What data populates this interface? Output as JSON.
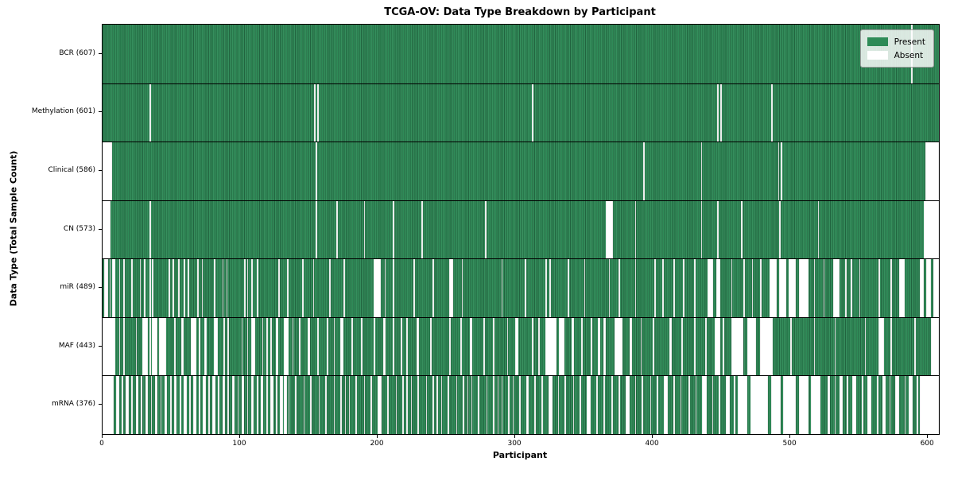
{
  "title": "TCGA-OV: Data Type Breakdown by Participant",
  "x_axis": {
    "label": "Participant"
  },
  "y_axis": {
    "label": "Data Type (Total Sample Count)"
  },
  "legend": [
    {
      "label": "Present",
      "color": "#2e8b57"
    },
    {
      "label": "Absent",
      "color": "#ffffff"
    }
  ],
  "colors": {
    "present": "#2e8b57",
    "present_edge": "#1f6840",
    "absent": "#ffffff",
    "axis": "#000000"
  },
  "chart_data": {
    "type": "heatmap",
    "title": "TCGA-OV: Data Type Breakdown by Participant",
    "xlabel": "Participant",
    "ylabel": "Data Type (Total Sample Count)",
    "x_ticks": [
      0,
      100,
      200,
      300,
      400,
      500,
      600
    ],
    "total_participants": 608,
    "values_meaning": {
      "present": "Present",
      "absent": "Absent"
    },
    "rows": [
      {
        "name": "BCR",
        "label": "BCR (607)",
        "present_count": 607,
        "absent_ranges": [
          [
            588,
            588
          ]
        ]
      },
      {
        "name": "Methylation",
        "label": "Methylation (601)",
        "present_count": 601,
        "absent_ranges": [
          [
            34,
            34
          ],
          [
            154,
            154
          ],
          [
            156,
            156
          ],
          [
            312,
            312
          ],
          [
            447,
            447
          ],
          [
            449,
            449
          ],
          [
            486,
            486
          ]
        ]
      },
      {
        "name": "Clinical",
        "label": "Clinical (586)",
        "present_count": 586,
        "absent_ranges": [
          [
            0,
            6
          ],
          [
            155,
            155
          ],
          [
            393,
            393
          ],
          [
            435,
            435
          ],
          [
            491,
            491
          ],
          [
            493,
            493
          ],
          [
            598,
            607
          ]
        ]
      },
      {
        "name": "CN",
        "label": "CN (573)",
        "present_count": 573,
        "absent_ranges": [
          [
            0,
            5
          ],
          [
            34,
            34
          ],
          [
            155,
            155
          ],
          [
            170,
            170
          ],
          [
            190,
            190
          ],
          [
            211,
            211
          ],
          [
            232,
            232
          ],
          [
            278,
            278
          ],
          [
            366,
            370
          ],
          [
            387,
            387
          ],
          [
            435,
            435
          ],
          [
            447,
            447
          ],
          [
            464,
            464
          ],
          [
            492,
            492
          ],
          [
            520,
            520
          ],
          [
            597,
            607
          ]
        ]
      },
      {
        "name": "miR",
        "label": "miR (489)",
        "present_count": 489,
        "absent_ranges": [
          [
            1,
            3
          ],
          [
            5,
            5
          ],
          [
            7,
            8
          ],
          [
            12,
            12
          ],
          [
            15,
            15
          ],
          [
            21,
            21
          ],
          [
            27,
            27
          ],
          [
            30,
            30
          ],
          [
            34,
            34
          ],
          [
            36,
            36
          ],
          [
            48,
            48
          ],
          [
            51,
            51
          ],
          [
            55,
            55
          ],
          [
            59,
            59
          ],
          [
            62,
            62
          ],
          [
            69,
            69
          ],
          [
            72,
            72
          ],
          [
            81,
            81
          ],
          [
            87,
            87
          ],
          [
            90,
            90
          ],
          [
            103,
            103
          ],
          [
            105,
            105
          ],
          [
            108,
            108
          ],
          [
            112,
            112
          ],
          [
            128,
            128
          ],
          [
            134,
            134
          ],
          [
            145,
            145
          ],
          [
            153,
            153
          ],
          [
            165,
            165
          ],
          [
            175,
            175
          ],
          [
            197,
            201
          ],
          [
            205,
            205
          ],
          [
            211,
            211
          ],
          [
            226,
            226
          ],
          [
            240,
            240
          ],
          [
            252,
            254
          ],
          [
            261,
            261
          ],
          [
            290,
            290
          ],
          [
            307,
            307
          ],
          [
            322,
            322
          ],
          [
            325,
            325
          ],
          [
            338,
            338
          ],
          [
            350,
            350
          ],
          [
            368,
            368
          ],
          [
            375,
            375
          ],
          [
            387,
            387
          ],
          [
            401,
            401
          ],
          [
            407,
            407
          ],
          [
            415,
            415
          ],
          [
            422,
            422
          ],
          [
            430,
            430
          ],
          [
            440,
            443
          ],
          [
            446,
            448
          ],
          [
            457,
            457
          ],
          [
            466,
            466
          ],
          [
            472,
            472
          ],
          [
            478,
            478
          ],
          [
            485,
            489
          ],
          [
            492,
            496
          ],
          [
            499,
            503
          ],
          [
            506,
            512
          ],
          [
            517,
            517
          ],
          [
            524,
            524
          ],
          [
            531,
            535
          ],
          [
            540,
            540
          ],
          [
            544,
            544
          ],
          [
            550,
            550
          ],
          [
            564,
            564
          ],
          [
            573,
            573
          ],
          [
            579,
            582
          ],
          [
            594,
            596
          ],
          [
            599,
            601
          ],
          [
            604,
            607
          ]
        ]
      },
      {
        "name": "MAF",
        "label": "MAF (443)",
        "present_count": 443,
        "absent_ranges": [
          [
            0,
            8
          ],
          [
            12,
            12
          ],
          [
            15,
            15
          ],
          [
            24,
            24
          ],
          [
            29,
            32
          ],
          [
            34,
            34
          ],
          [
            36,
            39
          ],
          [
            41,
            45
          ],
          [
            52,
            52
          ],
          [
            57,
            58
          ],
          [
            64,
            67
          ],
          [
            70,
            70
          ],
          [
            74,
            75
          ],
          [
            81,
            83
          ],
          [
            88,
            88
          ],
          [
            91,
            91
          ],
          [
            101,
            101
          ],
          [
            105,
            105
          ],
          [
            108,
            110
          ],
          [
            116,
            116
          ],
          [
            119,
            119
          ],
          [
            122,
            122
          ],
          [
            126,
            127
          ],
          [
            132,
            134
          ],
          [
            138,
            138
          ],
          [
            143,
            143
          ],
          [
            149,
            150
          ],
          [
            156,
            156
          ],
          [
            163,
            163
          ],
          [
            168,
            168
          ],
          [
            173,
            174
          ],
          [
            181,
            181
          ],
          [
            188,
            188
          ],
          [
            197,
            197
          ],
          [
            204,
            205
          ],
          [
            211,
            211
          ],
          [
            217,
            217
          ],
          [
            221,
            221
          ],
          [
            228,
            229
          ],
          [
            238,
            238
          ],
          [
            252,
            252
          ],
          [
            260,
            260
          ],
          [
            267,
            268
          ],
          [
            277,
            277
          ],
          [
            284,
            284
          ],
          [
            294,
            294
          ],
          [
            300,
            301
          ],
          [
            312,
            312
          ],
          [
            317,
            317
          ],
          [
            322,
            329
          ],
          [
            332,
            335
          ],
          [
            341,
            342
          ],
          [
            348,
            348
          ],
          [
            355,
            355
          ],
          [
            360,
            361
          ],
          [
            364,
            365
          ],
          [
            372,
            377
          ],
          [
            383,
            384
          ],
          [
            391,
            391
          ],
          [
            400,
            400
          ],
          [
            412,
            413
          ],
          [
            421,
            421
          ],
          [
            430,
            430
          ],
          [
            438,
            438
          ],
          [
            445,
            448
          ],
          [
            451,
            451
          ],
          [
            457,
            465
          ],
          [
            469,
            474
          ],
          [
            478,
            486
          ],
          [
            500,
            500
          ],
          [
            517,
            517
          ],
          [
            532,
            532
          ],
          [
            554,
            554
          ],
          [
            564,
            567
          ],
          [
            573,
            573
          ],
          [
            590,
            590
          ],
          [
            602,
            607
          ]
        ]
      },
      {
        "name": "mRNA",
        "label": "mRNA (376)",
        "present_count": 376,
        "absent_ranges": [
          [
            0,
            7
          ],
          [
            10,
            11
          ],
          [
            14,
            14
          ],
          [
            17,
            18
          ],
          [
            21,
            21
          ],
          [
            24,
            25
          ],
          [
            28,
            28
          ],
          [
            31,
            32
          ],
          [
            35,
            35
          ],
          [
            38,
            39
          ],
          [
            42,
            42
          ],
          [
            45,
            46
          ],
          [
            49,
            49
          ],
          [
            52,
            53
          ],
          [
            56,
            56
          ],
          [
            59,
            60
          ],
          [
            63,
            63
          ],
          [
            66,
            67
          ],
          [
            70,
            70
          ],
          [
            73,
            74
          ],
          [
            77,
            77
          ],
          [
            80,
            81
          ],
          [
            84,
            84
          ],
          [
            87,
            88
          ],
          [
            91,
            91
          ],
          [
            94,
            95
          ],
          [
            98,
            98
          ],
          [
            101,
            102
          ],
          [
            105,
            105
          ],
          [
            108,
            109
          ],
          [
            112,
            112
          ],
          [
            115,
            116
          ],
          [
            119,
            119
          ],
          [
            122,
            123
          ],
          [
            126,
            126
          ],
          [
            129,
            130
          ],
          [
            132,
            133
          ],
          [
            135,
            135
          ],
          [
            140,
            140
          ],
          [
            146,
            146
          ],
          [
            151,
            151
          ],
          [
            157,
            157
          ],
          [
            162,
            162
          ],
          [
            168,
            168
          ],
          [
            173,
            173
          ],
          [
            176,
            176
          ],
          [
            179,
            179
          ],
          [
            184,
            184
          ],
          [
            190,
            190
          ],
          [
            195,
            195
          ],
          [
            200,
            202
          ],
          [
            207,
            207
          ],
          [
            213,
            213
          ],
          [
            218,
            218
          ],
          [
            221,
            221
          ],
          [
            224,
            224
          ],
          [
            229,
            229
          ],
          [
            235,
            235
          ],
          [
            240,
            240
          ],
          [
            243,
            243
          ],
          [
            246,
            246
          ],
          [
            251,
            251
          ],
          [
            257,
            257
          ],
          [
            262,
            262
          ],
          [
            265,
            265
          ],
          [
            268,
            268
          ],
          [
            273,
            273
          ],
          [
            279,
            279
          ],
          [
            284,
            284
          ],
          [
            287,
            287
          ],
          [
            290,
            290
          ],
          [
            295,
            295
          ],
          [
            298,
            298
          ],
          [
            303,
            303
          ],
          [
            308,
            309
          ],
          [
            314,
            314
          ],
          [
            319,
            319
          ],
          [
            324,
            326
          ],
          [
            331,
            331
          ],
          [
            336,
            336
          ],
          [
            342,
            342
          ],
          [
            347,
            347
          ],
          [
            352,
            354
          ],
          [
            359,
            359
          ],
          [
            364,
            364
          ],
          [
            370,
            370
          ],
          [
            375,
            375
          ],
          [
            380,
            382
          ],
          [
            387,
            387
          ],
          [
            392,
            392
          ],
          [
            398,
            398
          ],
          [
            403,
            403
          ],
          [
            408,
            410
          ],
          [
            415,
            415
          ],
          [
            420,
            420
          ],
          [
            426,
            426
          ],
          [
            431,
            431
          ],
          [
            436,
            438
          ],
          [
            443,
            443
          ],
          [
            448,
            448
          ],
          [
            453,
            455
          ],
          [
            459,
            459
          ],
          [
            462,
            468
          ],
          [
            471,
            483
          ],
          [
            486,
            492
          ],
          [
            495,
            503
          ],
          [
            506,
            512
          ],
          [
            515,
            521
          ],
          [
            527,
            528
          ],
          [
            532,
            532
          ],
          [
            536,
            537
          ],
          [
            541,
            541
          ],
          [
            545,
            547
          ],
          [
            552,
            552
          ],
          [
            556,
            558
          ],
          [
            563,
            563
          ],
          [
            567,
            568
          ],
          [
            572,
            572
          ],
          [
            576,
            578
          ],
          [
            583,
            583
          ],
          [
            586,
            588
          ],
          [
            592,
            592
          ],
          [
            594,
            607
          ]
        ]
      }
    ],
    "legend_entries": [
      "Present",
      "Absent"
    ]
  }
}
